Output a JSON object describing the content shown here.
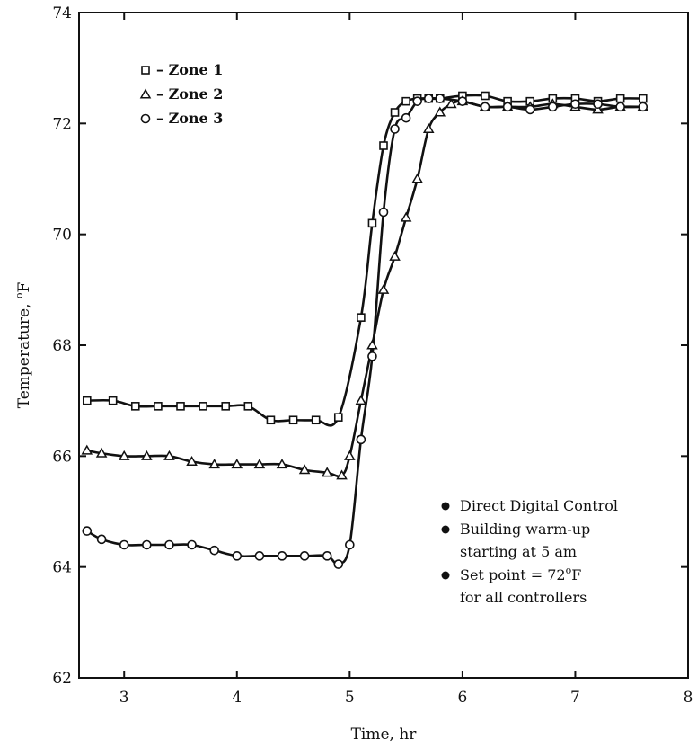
{
  "chart_data": {
    "type": "line",
    "title": "",
    "xlabel": "Time, hr",
    "ylabel_text": "Temperature, ",
    "ylabel_sup": "o",
    "ylabel_unit": "F",
    "xlim": [
      2.6,
      8
    ],
    "ylim": [
      62,
      74
    ],
    "xticks": [
      3,
      4,
      5,
      6,
      7,
      8
    ],
    "yticks": [
      62,
      64,
      66,
      68,
      70,
      72,
      74
    ],
    "grid": false,
    "legend_position": "top-left",
    "legend_label_dash": " – ",
    "series": [
      {
        "name": "Zone 1",
        "marker": "square",
        "x": [
          2.67,
          2.9,
          3.1,
          3.3,
          3.5,
          3.7,
          3.9,
          4.1,
          4.3,
          4.5,
          4.7,
          4.9,
          5.1,
          5.2,
          5.3,
          5.4,
          5.5,
          5.6,
          5.7,
          5.8,
          6.0,
          6.2,
          6.4,
          6.6,
          6.8,
          7.0,
          7.2,
          7.4,
          7.6
        ],
        "y": [
          67.0,
          67.0,
          66.9,
          66.9,
          66.9,
          66.9,
          66.9,
          66.9,
          66.65,
          66.65,
          66.65,
          66.7,
          68.5,
          70.2,
          71.6,
          72.2,
          72.4,
          72.45,
          72.45,
          72.45,
          72.5,
          72.5,
          72.4,
          72.4,
          72.45,
          72.45,
          72.4,
          72.45,
          72.45
        ]
      },
      {
        "name": "Zone 2",
        "marker": "triangle",
        "x": [
          2.67,
          2.8,
          3.0,
          3.2,
          3.4,
          3.6,
          3.8,
          4.0,
          4.2,
          4.4,
          4.6,
          4.8,
          4.93,
          5.0,
          5.1,
          5.2,
          5.3,
          5.4,
          5.5,
          5.6,
          5.7,
          5.8,
          5.9,
          6.0,
          6.2,
          6.4,
          6.6,
          6.8,
          7.0,
          7.2,
          7.4,
          7.6
        ],
        "y": [
          66.1,
          66.05,
          66.0,
          66.0,
          66.0,
          65.9,
          65.85,
          65.85,
          65.85,
          65.85,
          65.75,
          65.7,
          65.65,
          66.0,
          67.0,
          68.0,
          69.0,
          69.6,
          70.3,
          71.0,
          71.9,
          72.2,
          72.35,
          72.4,
          72.3,
          72.3,
          72.3,
          72.35,
          72.3,
          72.25,
          72.3,
          72.3
        ]
      },
      {
        "name": "Zone 3",
        "marker": "circle",
        "x": [
          2.67,
          2.8,
          3.0,
          3.2,
          3.4,
          3.6,
          3.8,
          4.0,
          4.2,
          4.4,
          4.6,
          4.8,
          4.9,
          5.0,
          5.1,
          5.2,
          5.3,
          5.4,
          5.5,
          5.6,
          5.7,
          5.8,
          6.0,
          6.2,
          6.4,
          6.6,
          6.8,
          7.0,
          7.2,
          7.4,
          7.6
        ],
        "y": [
          64.65,
          64.5,
          64.4,
          64.4,
          64.4,
          64.4,
          64.3,
          64.2,
          64.2,
          64.2,
          64.2,
          64.2,
          64.05,
          64.4,
          66.3,
          67.8,
          70.4,
          71.9,
          72.1,
          72.4,
          72.45,
          72.45,
          72.4,
          72.3,
          72.3,
          72.25,
          72.3,
          72.35,
          72.35,
          72.3,
          72.3
        ]
      }
    ],
    "annotations": [
      "Direct Digital Control",
      "Building warm-up",
      "starting at 5 am",
      "Set point = 72",
      "o",
      "F",
      "for all controllers"
    ]
  }
}
